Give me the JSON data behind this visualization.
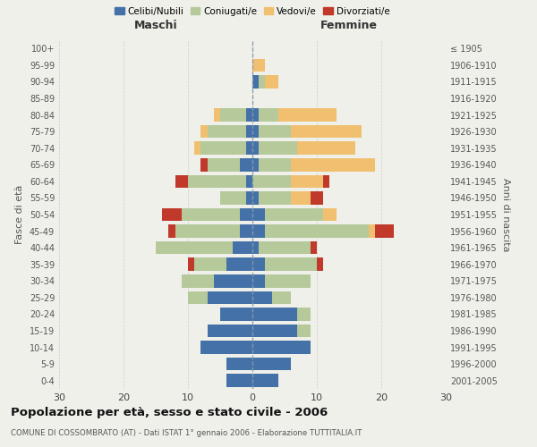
{
  "age_groups": [
    "0-4",
    "5-9",
    "10-14",
    "15-19",
    "20-24",
    "25-29",
    "30-34",
    "35-39",
    "40-44",
    "45-49",
    "50-54",
    "55-59",
    "60-64",
    "65-69",
    "70-74",
    "75-79",
    "80-84",
    "85-89",
    "90-94",
    "95-99",
    "100+"
  ],
  "birth_years": [
    "2001-2005",
    "1996-2000",
    "1991-1995",
    "1986-1990",
    "1981-1985",
    "1976-1980",
    "1971-1975",
    "1966-1970",
    "1961-1965",
    "1956-1960",
    "1951-1955",
    "1946-1950",
    "1941-1945",
    "1936-1940",
    "1931-1935",
    "1926-1930",
    "1921-1925",
    "1916-1920",
    "1911-1915",
    "1906-1910",
    "≤ 1905"
  ],
  "male": {
    "celibi": [
      4,
      4,
      8,
      7,
      5,
      7,
      6,
      4,
      3,
      2,
      2,
      1,
      1,
      2,
      1,
      1,
      1,
      0,
      0,
      0,
      0
    ],
    "coniugati": [
      0,
      0,
      0,
      0,
      0,
      3,
      5,
      5,
      12,
      10,
      9,
      4,
      9,
      5,
      7,
      6,
      4,
      0,
      0,
      0,
      0
    ],
    "vedovi": [
      0,
      0,
      0,
      0,
      0,
      0,
      0,
      0,
      0,
      0,
      0,
      0,
      0,
      0,
      1,
      1,
      1,
      0,
      0,
      0,
      0
    ],
    "divorziati": [
      0,
      0,
      0,
      0,
      0,
      0,
      0,
      1,
      0,
      1,
      3,
      0,
      2,
      1,
      0,
      0,
      0,
      0,
      0,
      0,
      0
    ]
  },
  "female": {
    "nubili": [
      4,
      6,
      9,
      7,
      7,
      3,
      2,
      2,
      1,
      2,
      2,
      1,
      0,
      1,
      1,
      1,
      1,
      0,
      1,
      0,
      0
    ],
    "coniugate": [
      0,
      0,
      0,
      2,
      2,
      3,
      7,
      8,
      8,
      16,
      9,
      5,
      6,
      5,
      6,
      5,
      3,
      0,
      1,
      0,
      0
    ],
    "vedove": [
      0,
      0,
      0,
      0,
      0,
      0,
      0,
      0,
      0,
      1,
      2,
      3,
      5,
      13,
      9,
      11,
      9,
      0,
      2,
      2,
      0
    ],
    "divorziate": [
      0,
      0,
      0,
      0,
      0,
      0,
      0,
      1,
      1,
      3,
      0,
      2,
      1,
      0,
      0,
      0,
      0,
      0,
      0,
      0,
      0
    ]
  },
  "colors": {
    "celibi_nubili": "#4472a8",
    "coniugati": "#b5c99a",
    "vedovi": "#f0c070",
    "divorziati": "#c0392b"
  },
  "xlim": 30,
  "title": "Popolazione per età, sesso e stato civile - 2006",
  "subtitle": "COMUNE DI COSSOMBRATO (AT) - Dati ISTAT 1° gennaio 2006 - Elaborazione TUTTITALIA.IT",
  "ylabel_left": "Fasce di età",
  "ylabel_right": "Anni di nascita",
  "xlabel_left": "Maschi",
  "xlabel_right": "Femmine",
  "background_color": "#f0f0eb"
}
